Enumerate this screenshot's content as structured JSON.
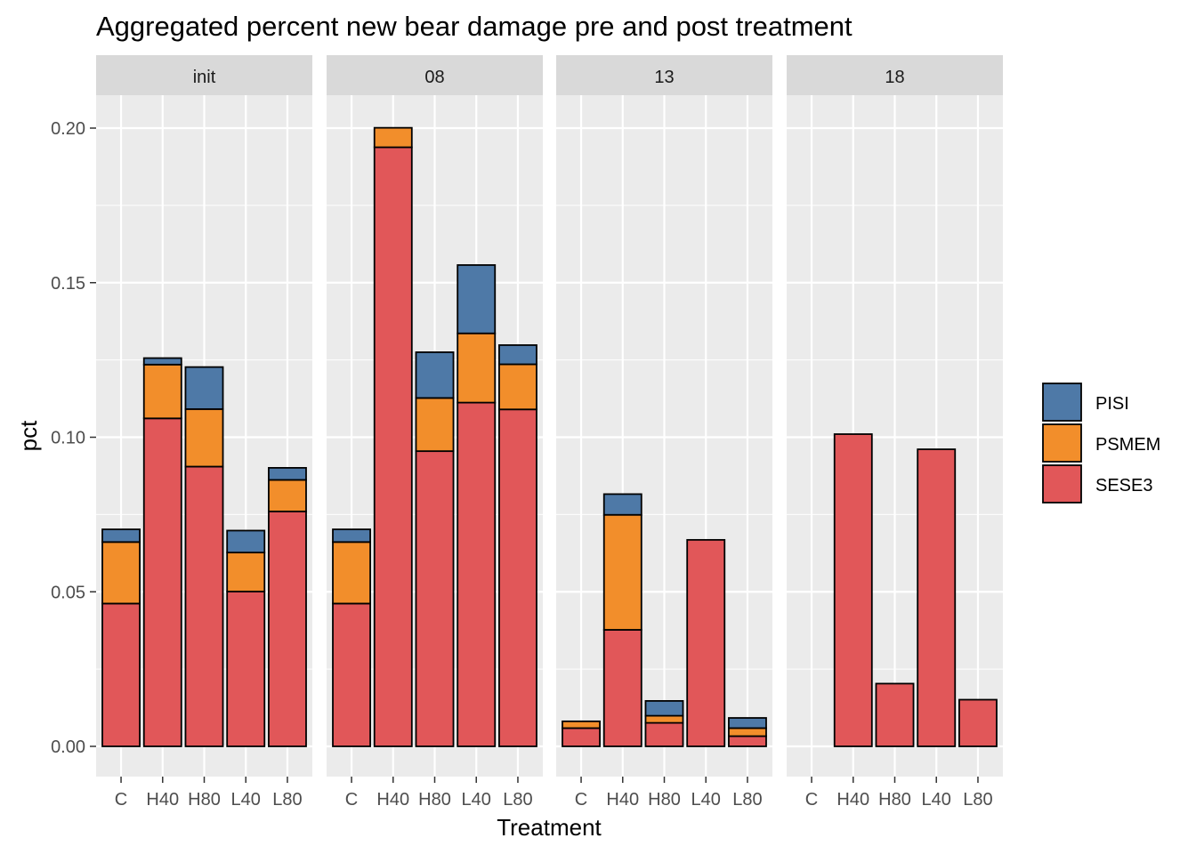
{
  "chart_data": {
    "type": "bar",
    "stacked": true,
    "title": "Aggregated percent new bear damage pre and post treatment",
    "xlabel": "Treatment",
    "ylabel": "pct",
    "ylim": [
      0,
      0.2
    ],
    "yticks": [
      "0.00",
      "0.05",
      "0.10",
      "0.15",
      "0.20"
    ],
    "grid": true,
    "legend_position": "right",
    "categories": [
      "C",
      "H40",
      "H80",
      "L40",
      "L80"
    ],
    "stack_order": [
      "SESE3",
      "PSMEM",
      "PISI"
    ],
    "legend": [
      {
        "name": "PISI",
        "color": "#4e79a7"
      },
      {
        "name": "PSMEM",
        "color": "#f28e2b"
      },
      {
        "name": "SESE3",
        "color": "#e15759"
      }
    ],
    "facets": [
      {
        "label": "init",
        "series": [
          {
            "name": "SESE3",
            "values": [
              0.0462,
              0.1061,
              0.0905,
              0.0501,
              0.076
            ]
          },
          {
            "name": "PSMEM",
            "values": [
              0.0199,
              0.0174,
              0.0186,
              0.0126,
              0.0102
            ]
          },
          {
            "name": "PISI",
            "values": [
              0.0041,
              0.0021,
              0.0136,
              0.0071,
              0.0039
            ]
          }
        ]
      },
      {
        "label": "08",
        "series": [
          {
            "name": "SESE3",
            "values": [
              0.0462,
              0.1938,
              0.0955,
              0.1112,
              0.109
            ]
          },
          {
            "name": "PSMEM",
            "values": [
              0.0199,
              0.0063,
              0.0172,
              0.0224,
              0.0146
            ]
          },
          {
            "name": "PISI",
            "values": [
              0.0041,
              0.0,
              0.0148,
              0.0221,
              0.0062
            ]
          }
        ]
      },
      {
        "label": "13",
        "series": [
          {
            "name": "SESE3",
            "values": [
              0.0059,
              0.0377,
              0.0076,
              0.0668,
              0.0033
            ]
          },
          {
            "name": "PSMEM",
            "values": [
              0.0022,
              0.0372,
              0.0023,
              0.0,
              0.0026
            ]
          },
          {
            "name": "PISI",
            "values": [
              0.0,
              0.0067,
              0.0048,
              0.0,
              0.0033
            ]
          }
        ]
      },
      {
        "label": "18",
        "series": [
          {
            "name": "SESE3",
            "values": [
              0.0,
              0.101,
              0.0203,
              0.0961,
              0.0151
            ]
          },
          {
            "name": "PSMEM",
            "values": [
              0.0,
              0.0,
              0.0,
              0.0,
              0.0
            ]
          },
          {
            "name": "PISI",
            "values": [
              0.0,
              0.0,
              0.0,
              0.0,
              0.0
            ]
          }
        ]
      }
    ]
  }
}
